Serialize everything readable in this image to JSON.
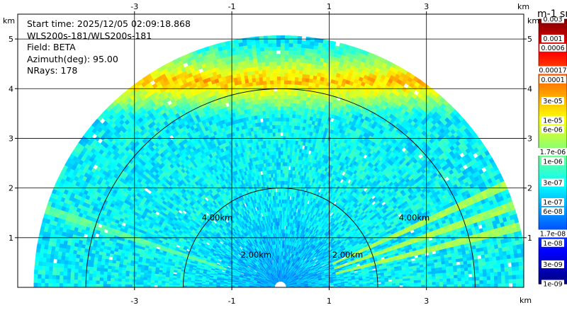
{
  "chart_data": {
    "type": "heatmap",
    "plot_kind": "RHI radar scan",
    "info": [
      "Start time: 2025/12/05 02:09:18.868",
      "WLS200s-181/WLS200s-181",
      "Field: BETA",
      "Azimuth(deg): 95.00",
      "NRays: 178"
    ],
    "axis_unit": "km",
    "xlim": [
      -5.4,
      5.0
    ],
    "ylim": [
      0,
      5.5
    ],
    "x_ticks": [
      -3,
      -1,
      1,
      3
    ],
    "y_ticks": [
      1,
      2,
      3,
      4,
      5
    ],
    "max_range_km": 5.0,
    "range_rings": [
      {
        "radius_km": 2,
        "label": "2.00km"
      },
      {
        "radius_km": 4,
        "label": "4.00km"
      }
    ],
    "colorbar": {
      "title": "m-1 sr-1",
      "scale": "log",
      "range": [
        1e-09,
        0.003
      ],
      "labels": [
        "0.003",
        "0.001",
        "0.0006",
        "0.00017",
        "0.0001",
        "3e-05",
        "1e-05",
        "6e-06",
        "1.7e-06",
        "1e-06",
        "3e-07",
        "1e-07",
        "6e-08",
        "1.7e-08",
        "1e-08",
        "3e-09",
        "1e-09"
      ]
    },
    "features": [
      {
        "kind": "aerosol_layer",
        "height_km": [
          3.7,
          4.6
        ],
        "value": 3e-05
      },
      {
        "kind": "low_elevation_streak",
        "elevation_deg": 14,
        "value": 3e-06
      },
      {
        "kind": "low_elevation_streak",
        "elevation_deg": 19,
        "value": 3e-06
      },
      {
        "kind": "low_elevation_streak",
        "elevation_deg": 24,
        "value": 3e-06
      },
      {
        "kind": "low_elevation_streak",
        "elevation_deg": 162,
        "value": 1e-06
      }
    ],
    "grid": true
  }
}
